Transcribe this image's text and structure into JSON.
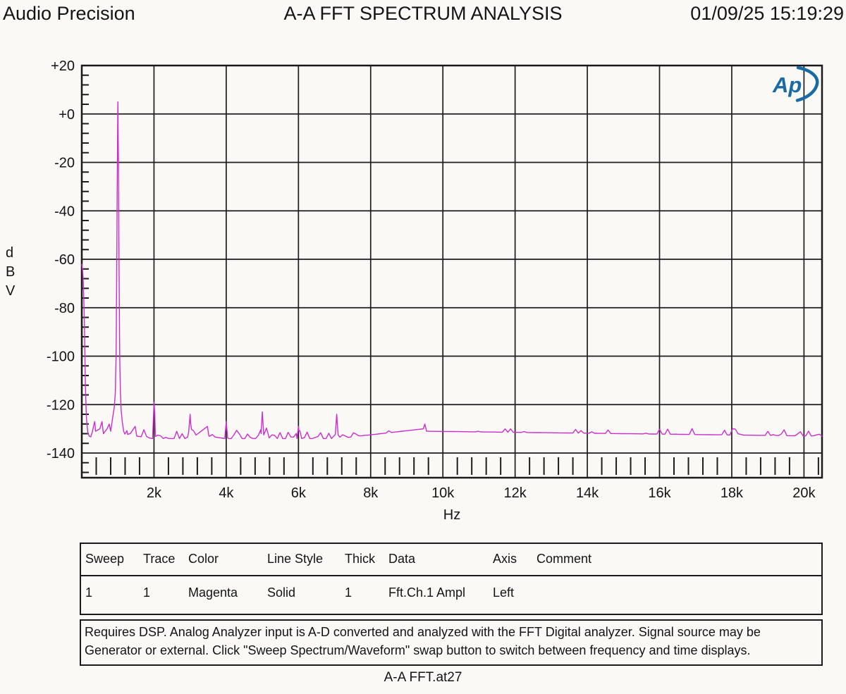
{
  "header": {
    "brand": "Audio Precision",
    "title": "A-A FFT SPECTRUM ANALYSIS",
    "timestamp": "01/09/25 15:19:29"
  },
  "logo": {
    "text": "Ap",
    "color": "#1a6ba5"
  },
  "chart_data": {
    "type": "line",
    "title": "A-A FFT SPECTRUM ANALYSIS",
    "xlabel": "Hz",
    "ylabel": "dBV",
    "xlim": [
      0,
      20500
    ],
    "ylim": [
      -150,
      20
    ],
    "grid": true,
    "x_major_ticks": [
      {
        "value": 2000,
        "label": "2k"
      },
      {
        "value": 4000,
        "label": "4k"
      },
      {
        "value": 6000,
        "label": "6k"
      },
      {
        "value": 8000,
        "label": "8k"
      },
      {
        "value": 10000,
        "label": "10k"
      },
      {
        "value": 12000,
        "label": "12k"
      },
      {
        "value": 14000,
        "label": "14k"
      },
      {
        "value": 16000,
        "label": "16k"
      },
      {
        "value": 18000,
        "label": "18k"
      },
      {
        "value": 20000,
        "label": "20k"
      }
    ],
    "x_minor_step": 400,
    "y_major_ticks": [
      {
        "value": 20,
        "label": "+20"
      },
      {
        "value": 0,
        "label": "+0"
      },
      {
        "value": -20,
        "label": "-20"
      },
      {
        "value": -40,
        "label": "-40"
      },
      {
        "value": -60,
        "label": "-60"
      },
      {
        "value": -80,
        "label": "-80"
      },
      {
        "value": -100,
        "label": "-100"
      },
      {
        "value": -120,
        "label": "-120"
      },
      {
        "value": -140,
        "label": "-140"
      }
    ],
    "y_minor_step": 4,
    "series": [
      {
        "name": "Fft.Ch.1 Ampl",
        "color_name": "Magenta",
        "color_hex": "#cc2ecc",
        "noise_floor_dbv": -133.5,
        "noise_jitter_db": 4,
        "seed": 42,
        "anchors": [
          [
            0,
            -62
          ],
          [
            20,
            -64
          ],
          [
            40,
            -68
          ],
          [
            70,
            -85
          ],
          [
            100,
            -112
          ],
          [
            130,
            -126
          ],
          [
            170,
            -132
          ],
          [
            250,
            -134
          ],
          [
            340,
            -128
          ],
          [
            360,
            -127
          ],
          [
            380,
            -131
          ],
          [
            500,
            -130
          ],
          [
            560,
            -127
          ],
          [
            600,
            -132
          ],
          [
            700,
            -130
          ],
          [
            760,
            -128
          ],
          [
            800,
            -131
          ],
          [
            820,
            -129
          ],
          [
            860,
            -125
          ],
          [
            900,
            -121
          ],
          [
            930,
            -115
          ],
          [
            950,
            -100
          ],
          [
            970,
            -60
          ],
          [
            985,
            -20
          ],
          [
            1000,
            5
          ],
          [
            1015,
            -20
          ],
          [
            1030,
            -60
          ],
          [
            1050,
            -100
          ],
          [
            1070,
            -115
          ],
          [
            1090,
            -122
          ],
          [
            1120,
            -127
          ],
          [
            1160,
            -131
          ],
          [
            1250,
            -134
          ],
          [
            1480,
            -129
          ],
          [
            1520,
            -133
          ],
          [
            1960,
            -134
          ],
          [
            1985,
            -125
          ],
          [
            2000,
            -119
          ],
          [
            2020,
            -123
          ],
          [
            2040,
            -134
          ],
          [
            2960,
            -134
          ],
          [
            3000,
            -124
          ],
          [
            3040,
            -134
          ],
          [
            3480,
            -129
          ],
          [
            3520,
            -133
          ],
          [
            3960,
            -134
          ],
          [
            4000,
            -127
          ],
          [
            4040,
            -134
          ],
          [
            4960,
            -134
          ],
          [
            5000,
            -123
          ],
          [
            5040,
            -134
          ],
          [
            5960,
            -134
          ],
          [
            6000,
            -129
          ],
          [
            6040,
            -134
          ],
          [
            7020,
            -134
          ],
          [
            7060,
            -124
          ],
          [
            7100,
            -134
          ],
          [
            9460,
            -130
          ],
          [
            9500,
            -128
          ],
          [
            9540,
            -131
          ],
          [
            20500,
            -133
          ]
        ]
      }
    ],
    "fundamental_peak": {
      "freq_hz": 1000,
      "level_dbv": 5
    }
  },
  "legend": {
    "headers": [
      "Sweep",
      "Trace",
      "Color",
      "Line Style",
      "Thick",
      "Data",
      "Axis",
      "Comment"
    ],
    "rows": [
      [
        "1",
        "1",
        "Magenta",
        "Solid",
        "1",
        "Fft.Ch.1 Ampl",
        "Left",
        ""
      ]
    ]
  },
  "notes": {
    "text": "Requires DSP.  Analog Analyzer input is A-D converted and analyzed with the FFT Digital analyzer.  Signal source may be Generator or external.  Click \"Sweep Spectrum/Waveform\" swap button to switch between frequency and time displays."
  },
  "footer": {
    "label": "A-A FFT.at27"
  }
}
